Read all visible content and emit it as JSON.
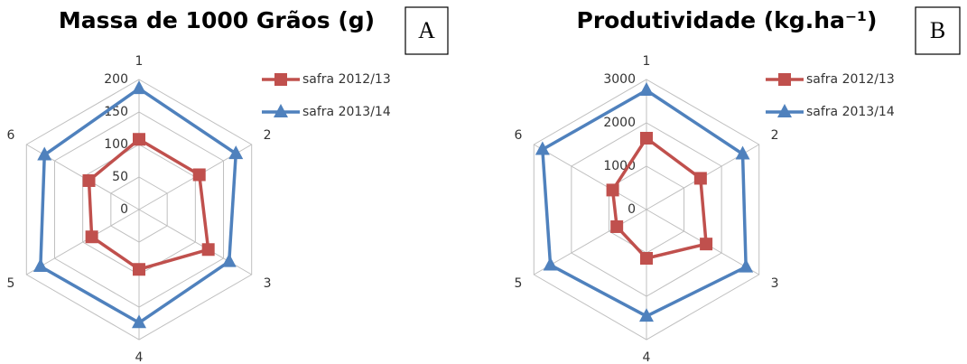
{
  "chart_data": [
    {
      "type": "radar",
      "title": "Massa de 1000 Grãos (g)",
      "panel_label": "A",
      "categories": [
        "1",
        "2",
        "3",
        "4",
        "5",
        "6"
      ],
      "series": [
        {
          "name": "safra 2012/13",
          "color": "#c0504d",
          "marker": "square",
          "values": [
            108,
            107,
            123,
            92,
            84,
            89
          ]
        },
        {
          "name": "safra 2013/14",
          "color": "#4f81bd",
          "marker": "triangle",
          "values": [
            186,
            172,
            160,
            174,
            175,
            168
          ]
        }
      ],
      "ylim": [
        0,
        200
      ],
      "yticks": [
        0,
        50,
        100,
        150,
        200
      ],
      "grid": true,
      "legend": "right"
    },
    {
      "type": "radar",
      "title": "Produtividade (kg.ha⁻¹)",
      "panel_label": "B",
      "categories": [
        "1",
        "2",
        "3",
        "4",
        "5",
        "6"
      ],
      "series": [
        {
          "name": "safra 2012/13",
          "color": "#c0504d",
          "marker": "square",
          "values": [
            1646,
            1440,
            1590,
            1125,
            790,
            900
          ]
        },
        {
          "name": "safra 2013/14",
          "color": "#4f81bd",
          "marker": "triangle",
          "values": [
            2750,
            2563,
            2650,
            2460,
            2560,
            2770
          ]
        }
      ],
      "ylim": [
        0,
        3000
      ],
      "yticks": [
        0,
        1000,
        2000,
        3000
      ],
      "grid": true,
      "legend": "right"
    }
  ]
}
